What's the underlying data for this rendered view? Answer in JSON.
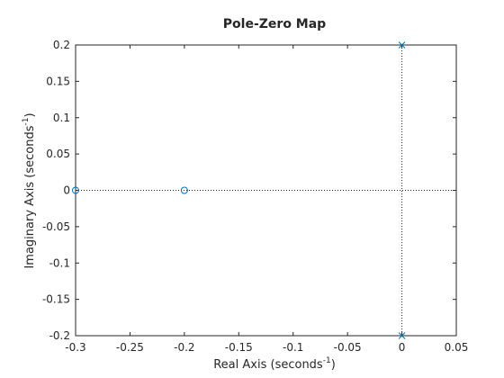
{
  "chart_data": {
    "type": "pzmap",
    "title": "Pole-Zero Map",
    "x_label": "Real Axis (seconds",
    "x_label_sup": "-1",
    "x_label_end": ")",
    "y_label": "Imaginary Axis (seconds",
    "y_label_sup": "-1",
    "y_label_end": ")",
    "xlim": [
      -0.3,
      0.05
    ],
    "xticks": [
      -0.3,
      -0.25,
      -0.2,
      -0.15,
      -0.1,
      -0.05,
      0,
      0.05
    ],
    "ylim": [
      -0.2,
      0.2
    ],
    "yticks": [
      -0.2,
      -0.15,
      -0.1,
      -0.05,
      0,
      0.05,
      0.1,
      0.15,
      0.2
    ],
    "zeros": {
      "x": [
        -0.3,
        -0.2
      ],
      "y": [
        0,
        0
      ]
    },
    "poles": {
      "x": [
        0,
        0
      ],
      "y": [
        0.2,
        -0.2
      ]
    },
    "color": "#0072bd",
    "zero_lines": true
  }
}
